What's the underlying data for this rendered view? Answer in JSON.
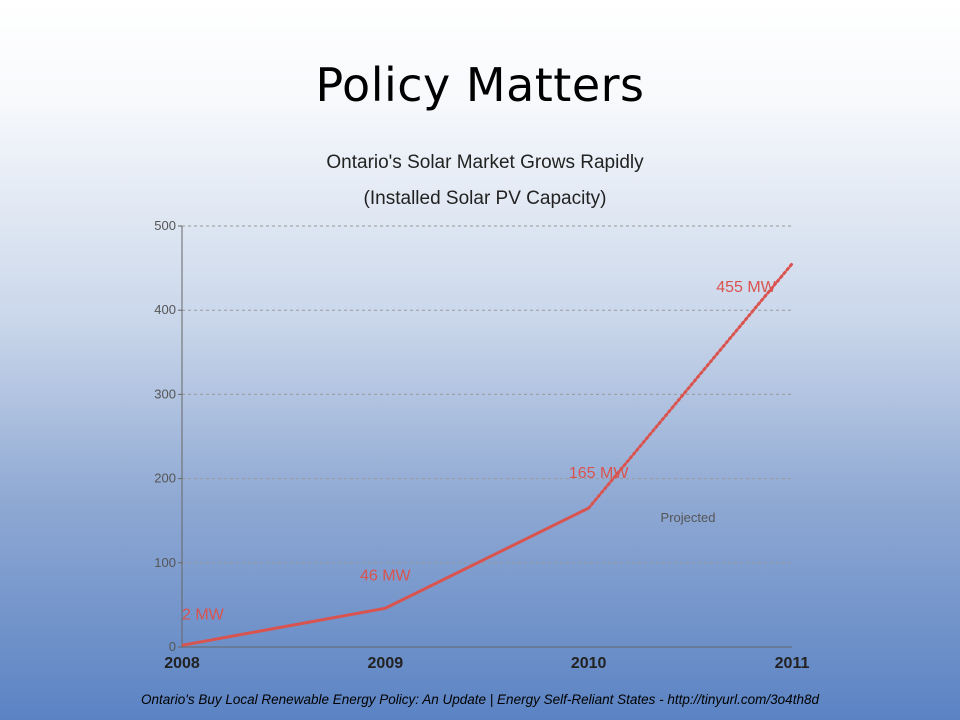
{
  "slide": {
    "title": "Policy Matters",
    "footer": "Ontario's Buy Local Renewable Energy Policy: An Update | Energy Self-Reliant States - http://tinyurl.com/3o4th8d"
  },
  "chart_data": {
    "type": "line",
    "title": "Ontario's Solar Market Grows Rapidly",
    "subtitle": "(Installed Solar PV Capacity)",
    "xlabel": "",
    "ylabel": "",
    "categories": [
      "2008",
      "2009",
      "2010",
      "2011"
    ],
    "series": [
      {
        "values": [
          2,
          46,
          165,
          455
        ],
        "labels": [
          "2 MW",
          "46 MW",
          "165 MW",
          "455 MW"
        ],
        "color": "#d9534f",
        "projected_from_index": 2
      }
    ],
    "ylim": [
      0,
      500
    ],
    "yticks": [
      "0",
      "100",
      "200",
      "300",
      "400",
      "500"
    ],
    "grid": true,
    "annotations": [
      {
        "text": "Projected",
        "x": "2010–2011",
        "y": 155
      }
    ]
  }
}
